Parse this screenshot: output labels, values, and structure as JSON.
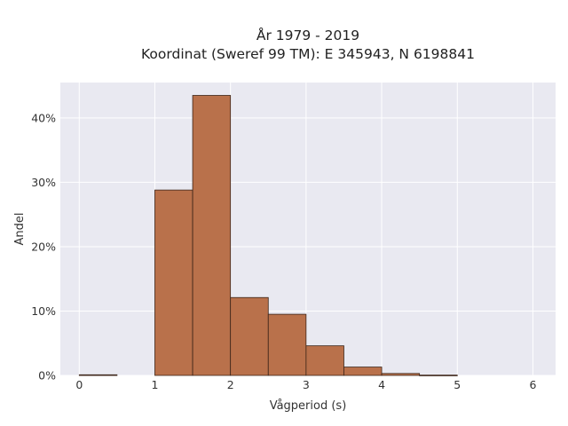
{
  "chart_data": {
    "type": "bar",
    "title_lines": [
      "År 1979 - 2019",
      "Koordinat (Sweref 99 TM): E 345943, N 6198841"
    ],
    "xlabel": "Vågperiod (s)",
    "ylabel": "Andel",
    "x_ticks": [
      "0",
      "1",
      "2",
      "3",
      "4",
      "5",
      "6"
    ],
    "y_ticks": [
      "0%",
      "10%",
      "20%",
      "30%",
      "40%"
    ],
    "xlim": [
      -0.25,
      6.3
    ],
    "ylim": [
      0,
      45.5
    ],
    "grid": true,
    "bins": [
      {
        "x0": 0.0,
        "x1": 0.5,
        "value": 0.1
      },
      {
        "x0": 1.0,
        "x1": 1.5,
        "value": 28.8
      },
      {
        "x0": 1.5,
        "x1": 2.0,
        "value": 43.5
      },
      {
        "x0": 2.0,
        "x1": 2.5,
        "value": 12.1
      },
      {
        "x0": 2.5,
        "x1": 3.0,
        "value": 9.5
      },
      {
        "x0": 3.0,
        "x1": 3.5,
        "value": 4.6
      },
      {
        "x0": 3.5,
        "x1": 4.0,
        "value": 1.3
      },
      {
        "x0": 4.0,
        "x1": 4.5,
        "value": 0.3
      },
      {
        "x0": 4.5,
        "x1": 5.0,
        "value": 0.05
      }
    ],
    "colors": {
      "bar_fill": "#b9714b",
      "bar_stroke": "#3c2418",
      "plot_bg": "#e9e9f1",
      "grid": "#ffffff"
    }
  }
}
